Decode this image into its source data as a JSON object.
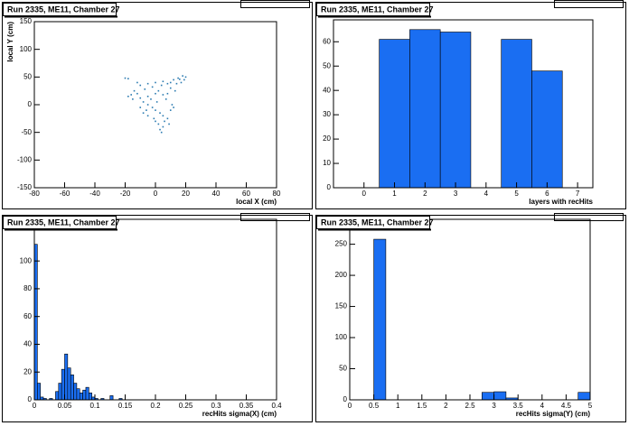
{
  "chart_data": [
    {
      "type": "scatter",
      "title": "Run 2335, ME11, Chamber 27",
      "x_label": "local X (cm)",
      "y_label": "local Y (cm)",
      "color": "#2a7ab0",
      "x": [
        -20,
        -18,
        -12,
        -10,
        -5,
        0,
        5,
        8,
        10,
        12,
        15,
        18,
        20,
        17,
        19,
        14,
        -18,
        -15,
        -10,
        -8,
        -12,
        -5,
        -3,
        0,
        2,
        5,
        8,
        10,
        -5,
        -2,
        0,
        3,
        5,
        -8,
        -5,
        0,
        2,
        5,
        8,
        10,
        12,
        -10,
        -6,
        3,
        4,
        -1,
        6,
        9,
        1,
        -14,
        -7,
        13,
        7,
        11,
        -16,
        -2,
        4,
        16
      ],
      "y": [
        48,
        47,
        40,
        35,
        38,
        40,
        42,
        38,
        40,
        45,
        48,
        52,
        50,
        40,
        45,
        38,
        15,
        10,
        12,
        5,
        20,
        15,
        10,
        20,
        25,
        18,
        20,
        30,
        0,
        -5,
        -10,
        -15,
        -20,
        -15,
        -20,
        -30,
        -35,
        -40,
        -25,
        -10,
        -5,
        -5,
        -10,
        -45,
        -50,
        -25,
        -30,
        -35,
        5,
        25,
        28,
        25,
        10,
        0,
        18,
        32,
        35,
        46
      ],
      "xlim": [
        -80,
        80
      ],
      "xticks": [
        -80,
        -60,
        -40,
        -20,
        0,
        20,
        40,
        60,
        80
      ],
      "ylim": [
        -150,
        150
      ],
      "yticks": [
        -150,
        -100,
        -50,
        0,
        50,
        100,
        150
      ]
    },
    {
      "type": "histogram",
      "title": "Run 2335, ME11, Chamber 27",
      "x_label": "layers with recHits",
      "color": "#1a6ef2",
      "bins": [
        0.5,
        1.5,
        2.5,
        3.5,
        4.5,
        5.5,
        6.5
      ],
      "values": [
        61,
        65,
        64,
        0,
        61,
        48
      ],
      "xlim": [
        -1,
        7.5
      ],
      "xticks": [
        0,
        1,
        2,
        3,
        4,
        5,
        6,
        7
      ],
      "ylim": [
        0,
        69
      ],
      "yticks": [
        0,
        10,
        20,
        30,
        40,
        50,
        60
      ]
    },
    {
      "type": "histogram",
      "title": "Run 2335, ME11, Chamber 27",
      "x_label": "recHits sigma(X) (cm)",
      "color": "#1a6ef2",
      "bins": [
        0,
        0.005,
        0.01,
        0.015,
        0.02,
        0.025,
        0.03,
        0.035,
        0.04,
        0.045,
        0.05,
        0.055,
        0.06,
        0.065,
        0.07,
        0.075,
        0.08,
        0.085,
        0.09,
        0.095,
        0.1,
        0.105,
        0.11,
        0.115,
        0.12,
        0.125,
        0.13,
        0.135,
        0.14,
        0.145,
        0.15
      ],
      "values": [
        112,
        12,
        2,
        1,
        0,
        1,
        0,
        6,
        12,
        22,
        33,
        23,
        18,
        12,
        8,
        5,
        7,
        9,
        5,
        2,
        1,
        0,
        1,
        0,
        0,
        3,
        0,
        0,
        1,
        0
      ],
      "xlim": [
        0,
        0.4
      ],
      "xticks": [
        0,
        0.05,
        0.1,
        0.15,
        0.2,
        0.25,
        0.3,
        0.35,
        0.4
      ],
      "ylim": [
        0,
        130
      ],
      "yticks": [
        0,
        20,
        40,
        60,
        80,
        100
      ]
    },
    {
      "type": "histogram",
      "title": "Run 2335, ME11, Chamber 27",
      "x_label": "recHits sigma(Y) (cm)",
      "color": "#1a6ef2",
      "bins": [
        0.5,
        0.75,
        1,
        1.25,
        1.5,
        1.75,
        2,
        2.25,
        2.5,
        2.75,
        3,
        3.25,
        3.5,
        3.75,
        4,
        4.25,
        4.5,
        4.75,
        5
      ],
      "values": [
        258,
        0,
        0,
        0,
        0,
        0,
        0,
        0,
        0,
        12,
        13,
        3,
        0,
        0,
        0,
        0,
        0,
        12
      ],
      "xlim": [
        0,
        5
      ],
      "xticks": [
        0,
        0.5,
        1,
        1.5,
        2,
        2.5,
        3,
        3.5,
        4,
        4.5,
        5
      ],
      "ylim": [
        0,
        290
      ],
      "yticks": [
        0,
        50,
        100,
        150,
        200,
        250
      ]
    }
  ]
}
